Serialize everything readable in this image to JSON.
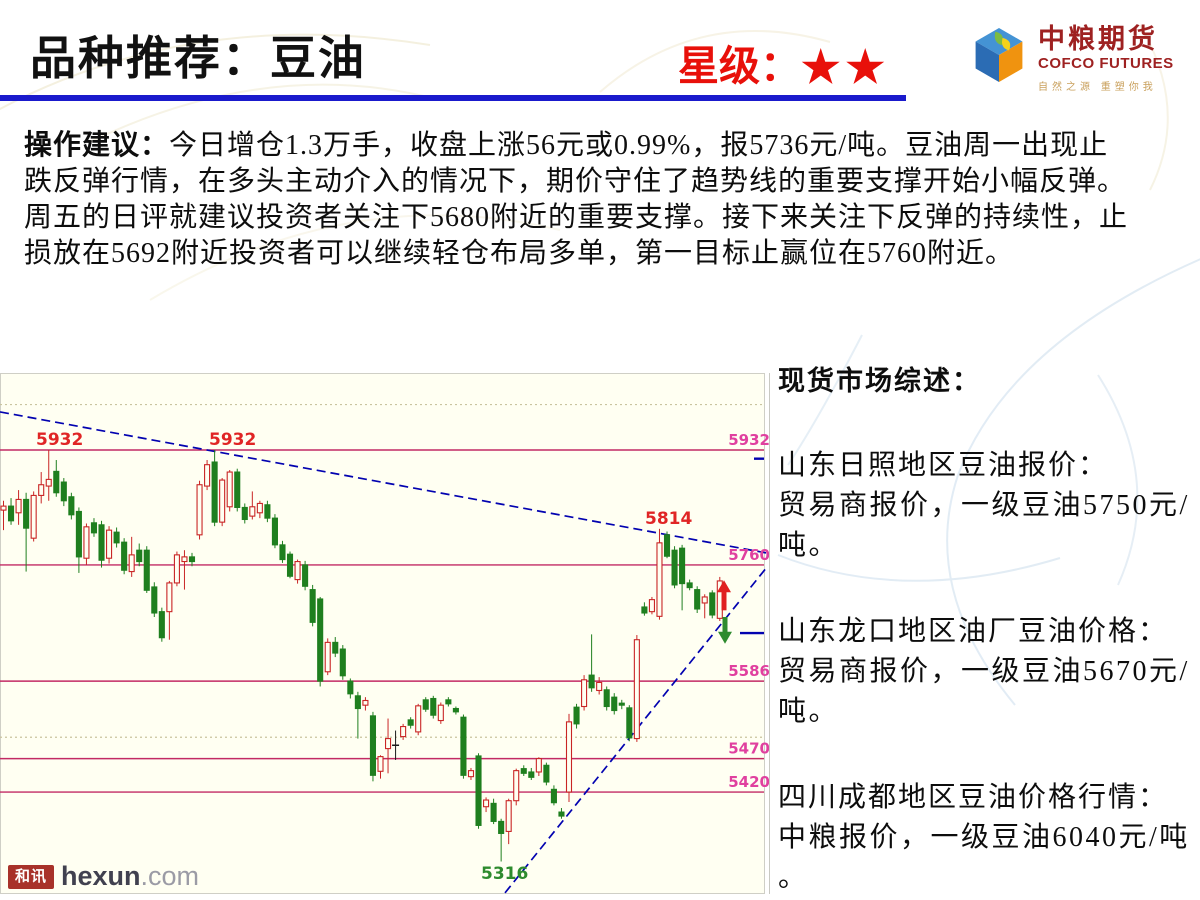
{
  "header": {
    "title": "品种推荐：豆油",
    "star_label": "星级：",
    "stars": "★★",
    "rule_color": "#1A1ACC",
    "star_color": "#E8100A"
  },
  "logo": {
    "name_cn": "中粮期货",
    "name_en": "COFCO FUTURES",
    "slogan": "自然之源 重塑你我"
  },
  "advisory": {
    "label": "操作建议：",
    "lines": [
      "今日增仓1.3万手，收盘上涨56元或0.99%，报5736元/吨。豆油周一出现止",
      "跌反弹行情，在多头主动介入的情况下，期价守住了趋势线的重要支撑开始小幅反弹。",
      "周五的日评就建议投资者关注下5680附近的重要支撑。接下来关注下反弹的持续性，止",
      "损放在5692附近投资者可以继续轻仓布局多单，第一目标止赢位在5760附近。"
    ]
  },
  "spot": {
    "title": "现货市场综述：",
    "groups": [
      {
        "title": "山东日照地区豆油报价：",
        "lines": [
          "贸易商报价，一级豆油5750元/",
          "吨。"
        ]
      },
      {
        "title": "山东龙口地区油厂豆油价格：",
        "lines": [
          "贸易商报价，一级豆油5670元/",
          "吨。"
        ]
      },
      {
        "title": "四川成都地区豆油价格行情：",
        "lines": [
          "中粮报价，一级豆油6040元/吨",
          "。"
        ]
      }
    ]
  },
  "footer": {
    "badge": "和讯",
    "brand": "hexun",
    "domain": ".com"
  },
  "chart_data": {
    "type": "candlestick",
    "title": "豆油期货日K线",
    "ylim": [
      5269,
      6047
    ],
    "grid": "horizontal-support-resistance",
    "legend_position": "none",
    "gridlines": [
      5932,
      5760,
      5586,
      5470,
      5420
    ],
    "dotted_gridlines": [
      6000,
      5502
    ],
    "colors": {
      "chart_bg": "#FFFFF2",
      "gridline": "#C22A64",
      "right_label": "#E0409F",
      "peak_label": "#E02525",
      "low_label": "#2E8B2E",
      "trendline": "#0202B0",
      "up": "#C92525",
      "down": "#1F7F1F",
      "doji": "#1A1A1A",
      "frame": "#CFCFC6"
    },
    "annotations": {
      "peak_labels": [
        {
          "text": "5932",
          "x": 36
        },
        {
          "text": "5932",
          "x": 209
        }
      ],
      "high_label": {
        "text": "5814",
        "x": 645
      },
      "low_label": {
        "text": "5316",
        "x": 481
      },
      "right_labels": [
        "5932",
        "5760",
        "5586",
        "5470",
        "5420"
      ]
    },
    "trendlines": [
      {
        "name": "descending-resistance",
        "x1": 0,
        "p1": 5989,
        "x2": 766,
        "p2": 5778
      },
      {
        "name": "ascending-support",
        "x1": 505,
        "p1": 5269,
        "x2": 766,
        "p2": 5755
      }
    ],
    "edge_ticks": [
      {
        "x": 754,
        "price": 5919
      },
      {
        "x": 740,
        "price": 5658
      }
    ],
    "arrows": [
      {
        "dir": "up",
        "x": 724,
        "price_top": 5737,
        "price_bottom": 5692,
        "color": "#E02020"
      },
      {
        "dir": "down",
        "x": 725,
        "price_top": 5682,
        "price_bottom": 5642,
        "color": "#2E8B2E"
      }
    ],
    "candles": [
      [
        5842,
        5856,
        5812,
        5848
      ],
      [
        5848,
        5860,
        5820,
        5826
      ],
      [
        5838,
        5872,
        5820,
        5858
      ],
      [
        5858,
        5868,
        5750,
        5815
      ],
      [
        5800,
        5870,
        5795,
        5864
      ],
      [
        5864,
        5899,
        5852,
        5880
      ],
      [
        5878,
        5932,
        5856,
        5888
      ],
      [
        5900,
        5917,
        5862,
        5868
      ],
      [
        5884,
        5890,
        5848,
        5856
      ],
      [
        5862,
        5868,
        5828,
        5835
      ],
      [
        5840,
        5846,
        5748,
        5772
      ],
      [
        5770,
        5822,
        5760,
        5817
      ],
      [
        5823,
        5830,
        5802,
        5808
      ],
      [
        5820,
        5826,
        5756,
        5767
      ],
      [
        5770,
        5818,
        5762,
        5812
      ],
      [
        5809,
        5816,
        5786,
        5793
      ],
      [
        5794,
        5800,
        5746,
        5752
      ],
      [
        5750,
        5802,
        5742,
        5775
      ],
      [
        5782,
        5792,
        5758,
        5765
      ],
      [
        5782,
        5788,
        5718,
        5722
      ],
      [
        5727,
        5734,
        5682,
        5688
      ],
      [
        5690,
        5696,
        5645,
        5651
      ],
      [
        5690,
        5736,
        5648,
        5733
      ],
      [
        5733,
        5780,
        5728,
        5775
      ],
      [
        5765,
        5782,
        5723,
        5772
      ],
      [
        5772,
        5778,
        5758,
        5765
      ],
      [
        5805,
        5886,
        5798,
        5880
      ],
      [
        5878,
        5917,
        5872,
        5910
      ],
      [
        5914,
        5932,
        5818,
        5824
      ],
      [
        5824,
        5890,
        5818,
        5887
      ],
      [
        5847,
        5902,
        5840,
        5899
      ],
      [
        5899,
        5904,
        5840,
        5846
      ],
      [
        5846,
        5852,
        5822,
        5828
      ],
      [
        5833,
        5870,
        5828,
        5847
      ],
      [
        5838,
        5856,
        5830,
        5852
      ],
      [
        5850,
        5856,
        5824,
        5830
      ],
      [
        5830,
        5836,
        5785,
        5790
      ],
      [
        5790,
        5796,
        5763,
        5768
      ],
      [
        5776,
        5780,
        5740,
        5743
      ],
      [
        5738,
        5768,
        5732,
        5765
      ],
      [
        5760,
        5766,
        5722,
        5728
      ],
      [
        5723,
        5730,
        5668,
        5674
      ],
      [
        5709,
        5712,
        5578,
        5586
      ],
      [
        5600,
        5650,
        5595,
        5644
      ],
      [
        5644,
        5652,
        5622,
        5628
      ],
      [
        5634,
        5640,
        5588,
        5594
      ],
      [
        5586,
        5590,
        5560,
        5567
      ],
      [
        5564,
        5570,
        5500,
        5545
      ],
      [
        5550,
        5562,
        5542,
        5557
      ],
      [
        5534,
        5540,
        5436,
        5445
      ],
      [
        5451,
        5475,
        5440,
        5473
      ],
      [
        5485,
        5530,
        5448,
        5500
      ],
      [
        5490,
        5512,
        5468,
        5490,
        "x"
      ],
      [
        5503,
        5522,
        5498,
        5518
      ],
      [
        5528,
        5532,
        5515,
        5520
      ],
      [
        5510,
        5552,
        5505,
        5549
      ],
      [
        5558,
        5562,
        5540,
        5544
      ],
      [
        5560,
        5564,
        5530,
        5535
      ],
      [
        5527,
        5554,
        5522,
        5550
      ],
      [
        5558,
        5562,
        5548,
        5552
      ],
      [
        5545,
        5548,
        5536,
        5540
      ],
      [
        5532,
        5536,
        5440,
        5445
      ],
      [
        5443,
        5456,
        5438,
        5452
      ],
      [
        5474,
        5478,
        5365,
        5370
      ],
      [
        5398,
        5412,
        5390,
        5408
      ],
      [
        5403,
        5410,
        5372,
        5376
      ],
      [
        5376,
        5380,
        5316,
        5358
      ],
      [
        5361,
        5410,
        5342,
        5407
      ],
      [
        5407,
        5455,
        5400,
        5452
      ],
      [
        5455,
        5460,
        5444,
        5448
      ],
      [
        5450,
        5456,
        5438,
        5442
      ],
      [
        5450,
        5472,
        5444,
        5470
      ],
      [
        5460,
        5464,
        5430,
        5435
      ],
      [
        5424,
        5430,
        5400,
        5404
      ],
      [
        5390,
        5396,
        5380,
        5384
      ],
      [
        5420,
        5537,
        5405,
        5525
      ],
      [
        5547,
        5552,
        5515,
        5522
      ],
      [
        5548,
        5595,
        5542,
        5588
      ],
      [
        5595,
        5656,
        5570,
        5576
      ],
      [
        5572,
        5592,
        5566,
        5584
      ],
      [
        5573,
        5578,
        5542,
        5548
      ],
      [
        5562,
        5568,
        5536,
        5542
      ],
      [
        5553,
        5558,
        5544,
        5550
      ],
      [
        5546,
        5550,
        5496,
        5501
      ],
      [
        5500,
        5655,
        5495,
        5648
      ],
      [
        5697,
        5704,
        5684,
        5688
      ],
      [
        5690,
        5712,
        5686,
        5708
      ],
      [
        5683,
        5814,
        5678,
        5793
      ],
      [
        5805,
        5810,
        5770,
        5773
      ],
      [
        5782,
        5788,
        5725,
        5730
      ],
      [
        5785,
        5790,
        5692,
        5732
      ],
      [
        5733,
        5738,
        5722,
        5726
      ],
      [
        5723,
        5728,
        5688,
        5694
      ],
      [
        5703,
        5716,
        5680,
        5712
      ],
      [
        5718,
        5722,
        5680,
        5685
      ],
      [
        5680,
        5742,
        5676,
        5736
      ]
    ]
  }
}
